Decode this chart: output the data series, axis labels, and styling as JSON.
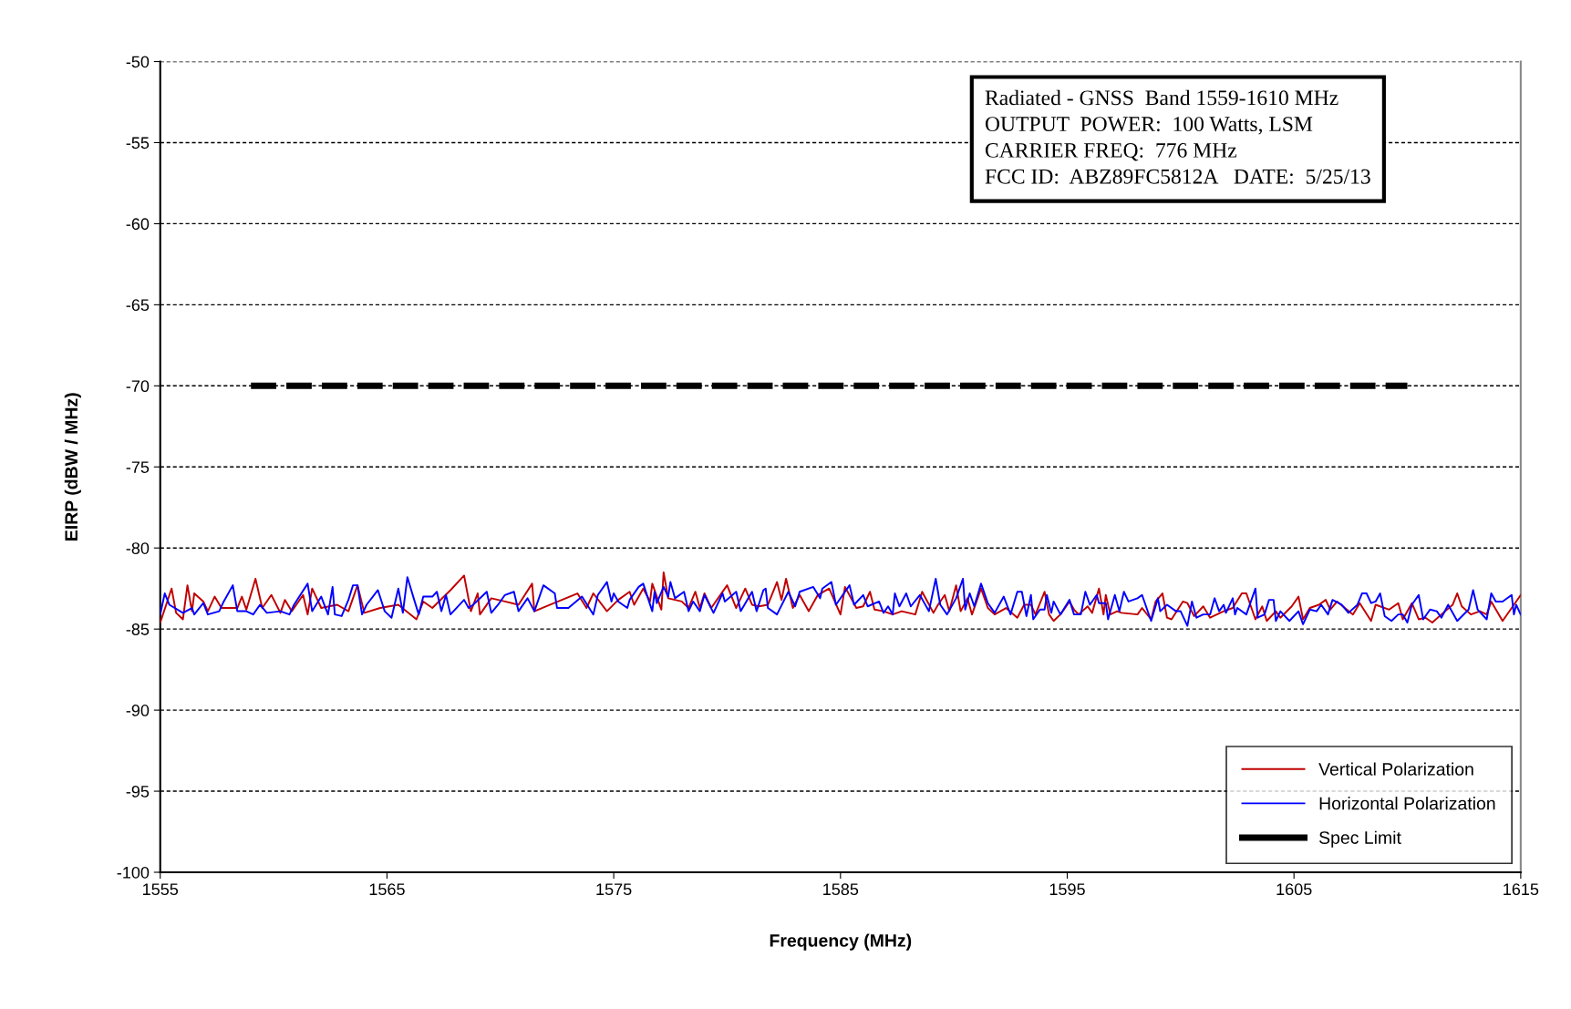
{
  "chart_data": {
    "type": "line",
    "xlabel": "Frequency (MHz)",
    "ylabel": "EIRP (dBW / MHz)",
    "xlim": [
      1555,
      1615
    ],
    "xticks": [
      1555,
      1565,
      1575,
      1585,
      1595,
      1605,
      1615
    ],
    "ylim": [
      -100,
      -50
    ],
    "yticks": [
      -100,
      -95,
      -90,
      -85,
      -80,
      -75,
      -70,
      -65,
      -60,
      -55,
      -50
    ],
    "grid": "y",
    "legend": "bottom right",
    "marker": "none",
    "annotations": [
      "Radiated - GNSS  Band 1559-1610 MHz",
      "OUTPUT  POWER:  100 Watts, LSM",
      "CARRIER FREQ:  776 MHz",
      "FCC ID:  ABZ89FC5812A   DATE:  5/25/13"
    ],
    "series": [
      {
        "name": "Vertical Polarization",
        "color": "#c00000",
        "line_style": "solid",
        "x": [
          1555.0,
          1555.5,
          1555.7,
          1556.0,
          1556.2,
          1556.4,
          1556.5,
          1556.9,
          1557.1,
          1557.4,
          1557.7,
          1558.4,
          1558.6,
          1558.8,
          1559.2,
          1559.5,
          1559.9,
          1560.3,
          1560.5,
          1560.8,
          1561.3,
          1561.5,
          1561.7,
          1562.1,
          1562.8,
          1563.3,
          1563.7,
          1564.0,
          1564.7,
          1565.5,
          1566.3,
          1566.6,
          1567.0,
          1567.8,
          1568.4,
          1568.7,
          1569.0,
          1569.1,
          1569.6,
          1570.2,
          1570.8,
          1571.4,
          1571.5,
          1572.2,
          1573.4,
          1573.8,
          1574.1,
          1574.7,
          1575.2,
          1575.7,
          1575.9,
          1576.3,
          1576.6,
          1576.7,
          1577.1,
          1577.2,
          1577.4,
          1578.0,
          1578.3,
          1578.6,
          1578.8,
          1579.0,
          1579.3,
          1580.0,
          1580.4,
          1580.8,
          1581.1,
          1581.4,
          1581.8,
          1582.2,
          1582.4,
          1582.6,
          1582.9,
          1583.2,
          1583.6,
          1584.0,
          1584.5,
          1585.0,
          1585.2,
          1585.7,
          1586.0,
          1586.3,
          1586.5,
          1586.9,
          1587.3,
          1587.7,
          1588.3,
          1588.6,
          1589.1,
          1589.3,
          1589.6,
          1589.8,
          1590.1,
          1590.3,
          1590.6,
          1590.8,
          1591.2,
          1591.5,
          1591.8,
          1592.3,
          1592.8,
          1593.1,
          1593.4,
          1593.6,
          1594.0,
          1594.2,
          1594.4,
          1594.7,
          1595.1,
          1595.3,
          1595.5,
          1595.9,
          1596.1,
          1596.4,
          1596.6,
          1596.7,
          1596.9,
          1597.2,
          1597.4,
          1598.1,
          1598.3,
          1598.7,
          1598.9,
          1599.2,
          1599.4,
          1599.6,
          1600.1,
          1600.3,
          1600.6,
          1601.0,
          1601.3,
          1601.9,
          1602.3,
          1602.7,
          1602.9,
          1603.3,
          1603.6,
          1603.8,
          1604.2,
          1604.4,
          1604.9,
          1605.2,
          1605.4,
          1605.7,
          1606.1,
          1606.4,
          1606.6,
          1606.9,
          1607.6,
          1607.9,
          1608.4,
          1608.6,
          1609.2,
          1609.6,
          1609.8,
          1610.2,
          1610.5,
          1610.8,
          1611.1,
          1611.5,
          1612.0,
          1612.2,
          1612.4,
          1612.8,
          1613.2,
          1613.5,
          1613.7,
          1614.2,
          1614.7,
          1615.0
        ],
        "values": [
          -84.6,
          -82.5,
          -84.0,
          -84.4,
          -82.3,
          -83.9,
          -82.8,
          -83.3,
          -83.9,
          -83.0,
          -83.7,
          -83.7,
          -83.0,
          -83.8,
          -81.9,
          -83.7,
          -82.9,
          -84.0,
          -83.2,
          -83.9,
          -82.9,
          -84.1,
          -82.5,
          -83.7,
          -83.5,
          -83.9,
          -82.3,
          -84.0,
          -83.7,
          -83.5,
          -84.4,
          -83.3,
          -83.7,
          -82.6,
          -81.7,
          -83.9,
          -82.8,
          -84.1,
          -83.1,
          -83.3,
          -83.5,
          -82.2,
          -83.9,
          -83.5,
          -82.8,
          -83.7,
          -82.8,
          -83.9,
          -83.2,
          -82.7,
          -83.5,
          -82.5,
          -83.3,
          -82.2,
          -83.8,
          -81.5,
          -83.1,
          -83.3,
          -83.7,
          -82.7,
          -83.7,
          -82.8,
          -83.7,
          -82.3,
          -83.7,
          -82.5,
          -83.5,
          -83.6,
          -83.5,
          -82.1,
          -83.2,
          -81.9,
          -83.7,
          -82.9,
          -83.9,
          -82.9,
          -82.5,
          -84.1,
          -82.4,
          -83.7,
          -83.6,
          -82.7,
          -83.8,
          -83.9,
          -84.1,
          -83.9,
          -84.1,
          -82.7,
          -84.0,
          -83.5,
          -82.9,
          -83.9,
          -82.3,
          -83.9,
          -83.1,
          -84.1,
          -82.5,
          -83.7,
          -84.1,
          -83.7,
          -84.3,
          -83.5,
          -83.5,
          -84.1,
          -82.7,
          -84.1,
          -84.5,
          -84.1,
          -83.3,
          -83.8,
          -84.1,
          -83.6,
          -84.0,
          -82.5,
          -84.1,
          -82.9,
          -84.1,
          -83.9,
          -84.0,
          -84.1,
          -83.7,
          -84.4,
          -83.3,
          -82.8,
          -84.3,
          -84.4,
          -83.3,
          -83.4,
          -84.2,
          -83.6,
          -84.3,
          -83.9,
          -83.7,
          -82.8,
          -82.8,
          -84.4,
          -83.6,
          -84.5,
          -83.9,
          -84.3,
          -83.6,
          -83.0,
          -84.4,
          -83.7,
          -83.5,
          -83.2,
          -83.8,
          -83.3,
          -84.1,
          -83.4,
          -84.5,
          -83.5,
          -83.8,
          -83.4,
          -84.4,
          -83.4,
          -84.4,
          -84.3,
          -84.6,
          -84.1,
          -83.5,
          -82.8,
          -83.6,
          -84.1,
          -83.9,
          -84.1,
          -83.3,
          -84.5,
          -83.5,
          -82.9
        ]
      },
      {
        "name": "Horizontal Polarization",
        "color": "#0000ff",
        "line_style": "solid",
        "x": [
          1555.0,
          1555.2,
          1555.4,
          1556.0,
          1556.4,
          1556.5,
          1556.9,
          1557.1,
          1557.6,
          1557.8,
          1558.2,
          1558.4,
          1558.8,
          1559.1,
          1559.4,
          1559.7,
          1560.3,
          1560.7,
          1560.9,
          1561.5,
          1561.7,
          1562.1,
          1562.4,
          1562.6,
          1562.7,
          1563.0,
          1563.3,
          1563.5,
          1563.7,
          1563.9,
          1564.1,
          1564.6,
          1564.9,
          1565.2,
          1565.5,
          1565.7,
          1565.9,
          1566.2,
          1566.4,
          1566.6,
          1567.0,
          1567.2,
          1567.4,
          1567.6,
          1567.8,
          1568.4,
          1568.6,
          1568.8,
          1569.4,
          1569.6,
          1569.9,
          1570.2,
          1570.6,
          1570.8,
          1571.2,
          1571.5,
          1571.9,
          1572.4,
          1572.5,
          1573.0,
          1573.6,
          1574.1,
          1574.3,
          1574.7,
          1574.9,
          1575.0,
          1575.2,
          1575.6,
          1575.7,
          1576.1,
          1576.3,
          1576.7,
          1576.8,
          1576.9,
          1577.2,
          1577.4,
          1577.5,
          1577.7,
          1578.1,
          1578.3,
          1578.5,
          1578.8,
          1579.0,
          1579.4,
          1579.8,
          1579.9,
          1580.4,
          1580.6,
          1581.1,
          1581.3,
          1581.6,
          1581.7,
          1581.8,
          1582.2,
          1582.7,
          1583.0,
          1583.2,
          1583.8,
          1584.1,
          1584.2,
          1584.6,
          1584.8,
          1585.1,
          1585.4,
          1585.6,
          1586.0,
          1586.2,
          1586.7,
          1586.9,
          1587.1,
          1587.3,
          1587.4,
          1587.6,
          1587.9,
          1588.1,
          1588.5,
          1588.9,
          1589.2,
          1589.4,
          1589.7,
          1590.1,
          1590.4,
          1590.5,
          1590.7,
          1590.9,
          1591.2,
          1591.5,
          1591.8,
          1592.2,
          1592.5,
          1592.8,
          1593.0,
          1593.2,
          1593.4,
          1593.5,
          1593.8,
          1594.0,
          1594.1,
          1594.3,
          1594.4,
          1594.7,
          1595.1,
          1595.3,
          1595.5,
          1595.6,
          1595.8,
          1596.0,
          1596.3,
          1596.4,
          1596.7,
          1596.8,
          1597.1,
          1597.3,
          1597.5,
          1597.7,
          1598.1,
          1598.3,
          1598.7,
          1599.0,
          1599.1,
          1599.4,
          1599.8,
          1600.0,
          1600.3,
          1600.5,
          1600.7,
          1601.0,
          1601.3,
          1601.5,
          1601.7,
          1601.9,
          1602.0,
          1602.3,
          1602.4,
          1602.5,
          1602.9,
          1603.3,
          1603.4,
          1603.7,
          1603.9,
          1604.1,
          1604.2,
          1604.4,
          1604.8,
          1605.2,
          1605.4,
          1605.7,
          1606.0,
          1606.2,
          1606.5,
          1606.7,
          1607.1,
          1607.4,
          1607.8,
          1608.0,
          1608.2,
          1608.4,
          1608.6,
          1608.8,
          1609.0,
          1609.3,
          1609.6,
          1609.8,
          1610.0,
          1610.2,
          1610.5,
          1610.7,
          1611.0,
          1611.3,
          1611.5,
          1611.8,
          1612.2,
          1612.7,
          1612.9,
          1613.1,
          1613.5,
          1613.7,
          1613.9,
          1614.2,
          1614.6,
          1614.7,
          1614.8,
          1615.0
        ],
        "values": [
          -84.1,
          -82.8,
          -83.5,
          -84.0,
          -83.7,
          -84.1,
          -83.4,
          -84.1,
          -83.9,
          -83.3,
          -82.3,
          -83.9,
          -83.9,
          -84.1,
          -83.5,
          -84.0,
          -83.9,
          -84.1,
          -83.5,
          -82.2,
          -83.9,
          -83.0,
          -84.1,
          -82.4,
          -84.1,
          -84.2,
          -83.2,
          -82.3,
          -82.3,
          -84.1,
          -83.5,
          -82.6,
          -83.9,
          -84.3,
          -82.5,
          -84.0,
          -81.8,
          -83.2,
          -84.1,
          -83.0,
          -83.0,
          -82.7,
          -83.9,
          -82.9,
          -84.1,
          -83.2,
          -83.7,
          -83.5,
          -82.7,
          -84.0,
          -83.5,
          -82.9,
          -82.7,
          -83.9,
          -83.1,
          -83.9,
          -82.3,
          -82.8,
          -83.7,
          -83.7,
          -83.0,
          -84.1,
          -82.9,
          -82.1,
          -83.3,
          -82.8,
          -83.3,
          -83.7,
          -83.2,
          -82.4,
          -82.2,
          -83.9,
          -82.7,
          -83.4,
          -82.4,
          -83.0,
          -82.1,
          -83.1,
          -82.7,
          -83.9,
          -83.3,
          -83.9,
          -82.9,
          -84.0,
          -82.8,
          -83.3,
          -82.7,
          -83.9,
          -82.7,
          -83.9,
          -82.6,
          -82.5,
          -83.7,
          -84.1,
          -82.7,
          -83.6,
          -82.7,
          -82.4,
          -83.1,
          -82.5,
          -82.1,
          -83.5,
          -82.9,
          -82.3,
          -83.5,
          -82.9,
          -83.6,
          -83.3,
          -84.0,
          -83.6,
          -84.1,
          -82.8,
          -83.6,
          -82.8,
          -83.6,
          -82.9,
          -83.9,
          -81.9,
          -83.5,
          -84.1,
          -83.1,
          -81.9,
          -83.8,
          -82.8,
          -83.6,
          -82.2,
          -83.4,
          -84.0,
          -83.0,
          -84.1,
          -82.7,
          -82.7,
          -84.2,
          -82.9,
          -84.4,
          -83.8,
          -83.8,
          -82.9,
          -84.0,
          -83.3,
          -84.1,
          -83.2,
          -84.1,
          -84.1,
          -84.1,
          -82.7,
          -83.5,
          -82.9,
          -83.4,
          -83.4,
          -84.4,
          -82.9,
          -83.9,
          -82.7,
          -83.3,
          -83.1,
          -82.9,
          -84.5,
          -83.1,
          -83.9,
          -83.5,
          -83.9,
          -83.9,
          -84.8,
          -83.3,
          -84.3,
          -84.1,
          -84.1,
          -83.1,
          -83.9,
          -83.5,
          -84.0,
          -83.1,
          -84.1,
          -83.7,
          -84.1,
          -82.5,
          -84.3,
          -84.1,
          -83.2,
          -83.2,
          -84.5,
          -83.9,
          -84.5,
          -83.9,
          -84.7,
          -83.8,
          -83.9,
          -83.5,
          -84.1,
          -83.2,
          -83.5,
          -84.0,
          -83.5,
          -82.8,
          -82.8,
          -83.4,
          -83.3,
          -82.8,
          -84.2,
          -84.5,
          -84.1,
          -84.1,
          -84.6,
          -83.5,
          -82.9,
          -84.4,
          -83.8,
          -83.9,
          -84.3,
          -83.5,
          -84.5,
          -83.8,
          -82.6,
          -83.8,
          -84.4,
          -82.8,
          -83.3,
          -83.3,
          -82.9,
          -84.1,
          -83.5,
          -84.1
        ]
      },
      {
        "name": "Spec Limit",
        "color": "#000000",
        "line_style": "dashed",
        "x": [
          1559,
          1610
        ],
        "values": [
          -70,
          -70
        ]
      }
    ]
  }
}
